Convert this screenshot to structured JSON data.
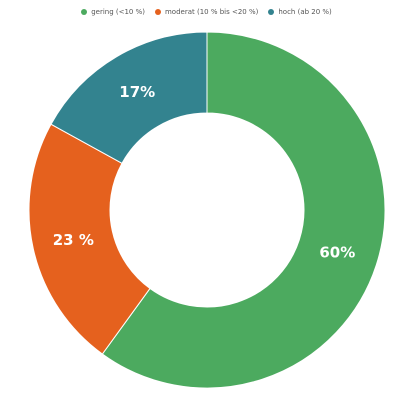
{
  "chart_data": {
    "type": "pie",
    "variant": "donut",
    "categories": [
      "gering (<10 %)",
      "moderat (10 % bis <20 %)",
      "hoch (ab 20 %)"
    ],
    "values": [
      60,
      23,
      17
    ],
    "labels": [
      "60%",
      "23 %",
      "17%"
    ],
    "colors": [
      "#4caa5f",
      "#e5611e",
      "#33838f"
    ],
    "legend_position": "top-center",
    "start": "top",
    "direction": "clockwise"
  }
}
